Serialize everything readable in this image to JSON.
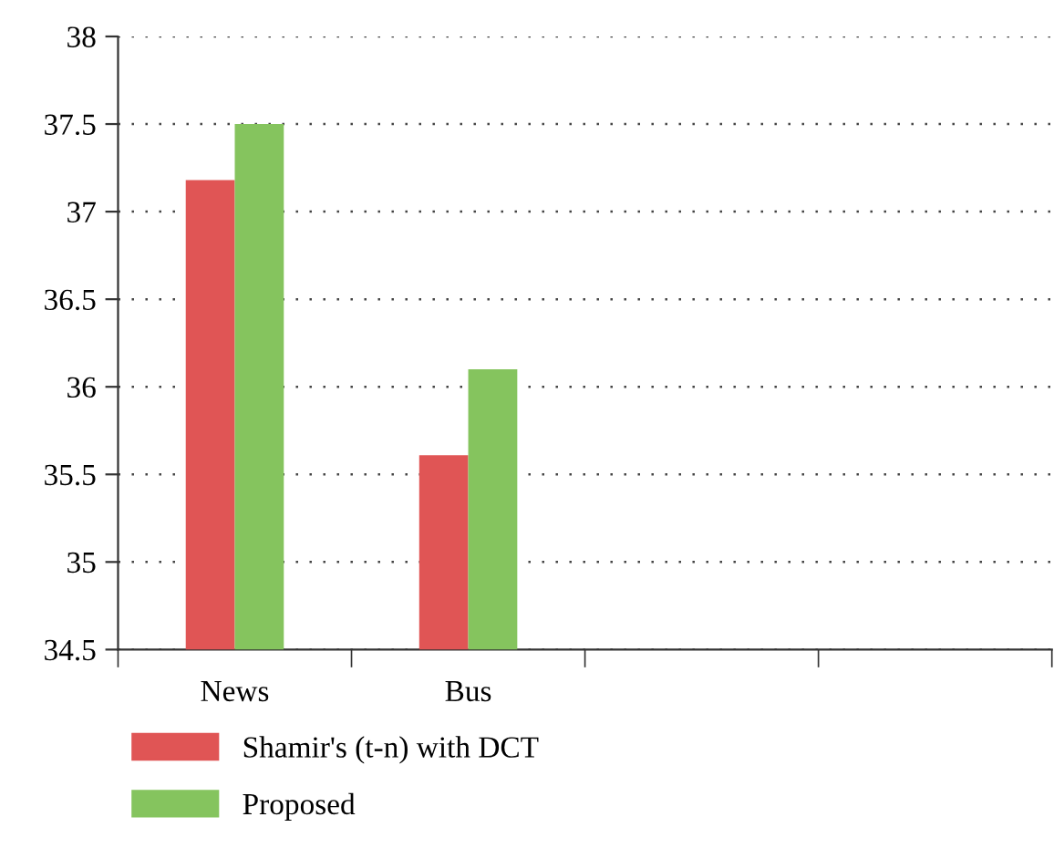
{
  "chart_data": {
    "type": "bar",
    "categories": [
      "News",
      "Bus",
      null,
      null
    ],
    "series": [
      {
        "name": "Shamir's (t-n) with DCT",
        "color": "#e05555",
        "values": [
          37.18,
          35.61,
          null,
          null
        ]
      },
      {
        "name": "Proposed",
        "color": "#85c45e",
        "values": [
          37.5,
          36.1,
          null,
          null
        ]
      }
    ],
    "ylim": [
      34.5,
      38
    ],
    "yticks": [
      34.5,
      35,
      35.5,
      36,
      36.5,
      37,
      37.5,
      38
    ],
    "grid": "y",
    "legend": "bottom"
  }
}
